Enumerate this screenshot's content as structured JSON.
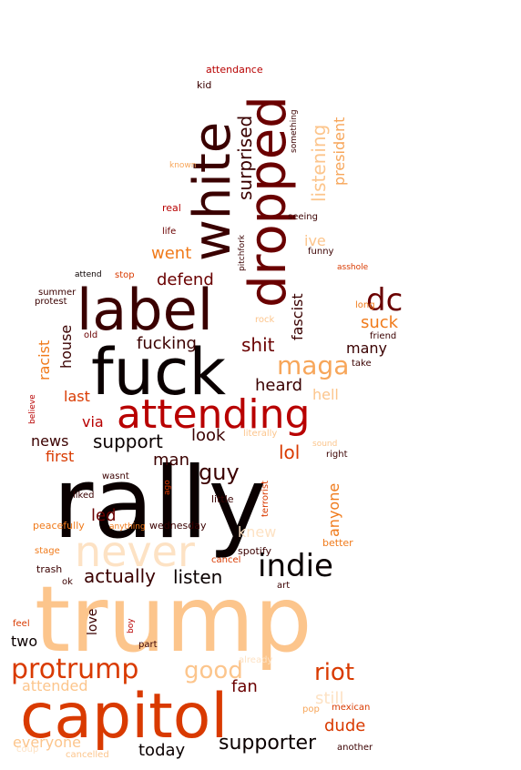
{
  "palette": {
    "black": "#0a0000",
    "maroon": "#3a0000",
    "darkred": "#6a0000",
    "red": "#b80000",
    "orangered": "#d93a00",
    "orange": "#f07a1a",
    "lightorange": "#f7a65a",
    "peach": "#fcc58c",
    "pale": "#fde2c4"
  },
  "words": [
    {
      "t": "trump",
      "c": "peach"
    },
    {
      "t": "rally",
      "c": "black"
    },
    {
      "t": "capitol",
      "c": "orangered"
    },
    {
      "t": "fuck",
      "c": "black"
    },
    {
      "t": "label",
      "c": "maroon"
    },
    {
      "t": "dropped",
      "c": "darkred"
    },
    {
      "t": "white",
      "c": "maroon"
    },
    {
      "t": "attending",
      "c": "red"
    },
    {
      "t": "never",
      "c": "pale"
    },
    {
      "t": "protrump",
      "c": "orangered"
    },
    {
      "t": "indie",
      "c": "black"
    },
    {
      "t": "maga",
      "c": "lightorange"
    },
    {
      "t": "dc",
      "c": "darkred"
    },
    {
      "t": "riot",
      "c": "orangered"
    },
    {
      "t": "good",
      "c": "peach"
    },
    {
      "t": "supporter",
      "c": "black"
    },
    {
      "t": "surprised",
      "c": "maroon"
    },
    {
      "t": "listening",
      "c": "peach"
    },
    {
      "t": "president",
      "c": "lightorange"
    },
    {
      "t": "guy",
      "c": "maroon"
    },
    {
      "t": "actually",
      "c": "maroon"
    },
    {
      "t": "listen",
      "c": "black"
    },
    {
      "t": "shit",
      "c": "darkred"
    },
    {
      "t": "fucking",
      "c": "maroon"
    },
    {
      "t": "support",
      "c": "black"
    },
    {
      "t": "news",
      "c": "maroon"
    },
    {
      "t": "first",
      "c": "orangered"
    },
    {
      "t": "lol",
      "c": "orangered"
    },
    {
      "t": "led",
      "c": "darkred"
    },
    {
      "t": "man",
      "c": "maroon"
    },
    {
      "t": "look",
      "c": "maroon"
    },
    {
      "t": "heard",
      "c": "maroon"
    },
    {
      "t": "hell",
      "c": "peach"
    },
    {
      "t": "last",
      "c": "orangered"
    },
    {
      "t": "via",
      "c": "red"
    },
    {
      "t": "defend",
      "c": "darkred"
    },
    {
      "t": "went",
      "c": "orange"
    },
    {
      "t": "fascist",
      "c": "maroon"
    },
    {
      "t": "suck",
      "c": "orange"
    },
    {
      "t": "many",
      "c": "maroon"
    },
    {
      "t": "house",
      "c": "maroon"
    },
    {
      "t": "racist",
      "c": "orange"
    },
    {
      "t": "anyone",
      "c": "orange"
    },
    {
      "t": "knew",
      "c": "pale"
    },
    {
      "t": "fan",
      "c": "darkred"
    },
    {
      "t": "dude",
      "c": "orangered"
    },
    {
      "t": "still",
      "c": "pale"
    },
    {
      "t": "today",
      "c": "black"
    },
    {
      "t": "everyone",
      "c": "peach"
    },
    {
      "t": "attended",
      "c": "peach"
    },
    {
      "t": "two",
      "c": "black"
    },
    {
      "t": "love",
      "c": "maroon"
    },
    {
      "t": "ive",
      "c": "peach"
    },
    {
      "t": "attendance",
      "c": "red"
    },
    {
      "t": "kid",
      "c": "maroon"
    },
    {
      "t": "something",
      "c": "maroon"
    },
    {
      "t": "known",
      "c": "lightorange"
    },
    {
      "t": "real",
      "c": "red"
    },
    {
      "t": "seeing",
      "c": "maroon"
    },
    {
      "t": "life",
      "c": "darkred"
    },
    {
      "t": "pitchfork",
      "c": "maroon"
    },
    {
      "t": "funny",
      "c": "maroon"
    },
    {
      "t": "asshole",
      "c": "orangered"
    },
    {
      "t": "attend",
      "c": "black"
    },
    {
      "t": "stop",
      "c": "orangered"
    },
    {
      "t": "summer",
      "c": "maroon"
    },
    {
      "t": "protest",
      "c": "maroon"
    },
    {
      "t": "long",
      "c": "orange"
    },
    {
      "t": "rock",
      "c": "peach"
    },
    {
      "t": "friend",
      "c": "maroon"
    },
    {
      "t": "old",
      "c": "darkred"
    },
    {
      "t": "take",
      "c": "maroon"
    },
    {
      "t": "believe",
      "c": "red"
    },
    {
      "t": "literally",
      "c": "peach"
    },
    {
      "t": "sound",
      "c": "peach"
    },
    {
      "t": "right",
      "c": "maroon"
    },
    {
      "t": "terrorist",
      "c": "orangered"
    },
    {
      "t": "wasnt",
      "c": "maroon"
    },
    {
      "t": "ago",
      "c": "orangered"
    },
    {
      "t": "liked",
      "c": "maroon"
    },
    {
      "t": "little",
      "c": "maroon"
    },
    {
      "t": "peacefully",
      "c": "orange"
    },
    {
      "t": "anything",
      "c": "orange"
    },
    {
      "t": "wednesday",
      "c": "maroon"
    },
    {
      "t": "better",
      "c": "orange"
    },
    {
      "t": "stage",
      "c": "orange"
    },
    {
      "t": "spotify",
      "c": "maroon"
    },
    {
      "t": "cancel",
      "c": "orangered"
    },
    {
      "t": "trash",
      "c": "maroon"
    },
    {
      "t": "ok",
      "c": "maroon"
    },
    {
      "t": "art",
      "c": "maroon"
    },
    {
      "t": "feel",
      "c": "orangered"
    },
    {
      "t": "boy",
      "c": "red"
    },
    {
      "t": "part",
      "c": "maroon"
    },
    {
      "t": "already",
      "c": "pale"
    },
    {
      "t": "pop",
      "c": "lightorange"
    },
    {
      "t": "mexican",
      "c": "orangered"
    },
    {
      "t": "coup",
      "c": "pale"
    },
    {
      "t": "cancelled",
      "c": "peach"
    },
    {
      "t": "another",
      "c": "maroon"
    }
  ]
}
